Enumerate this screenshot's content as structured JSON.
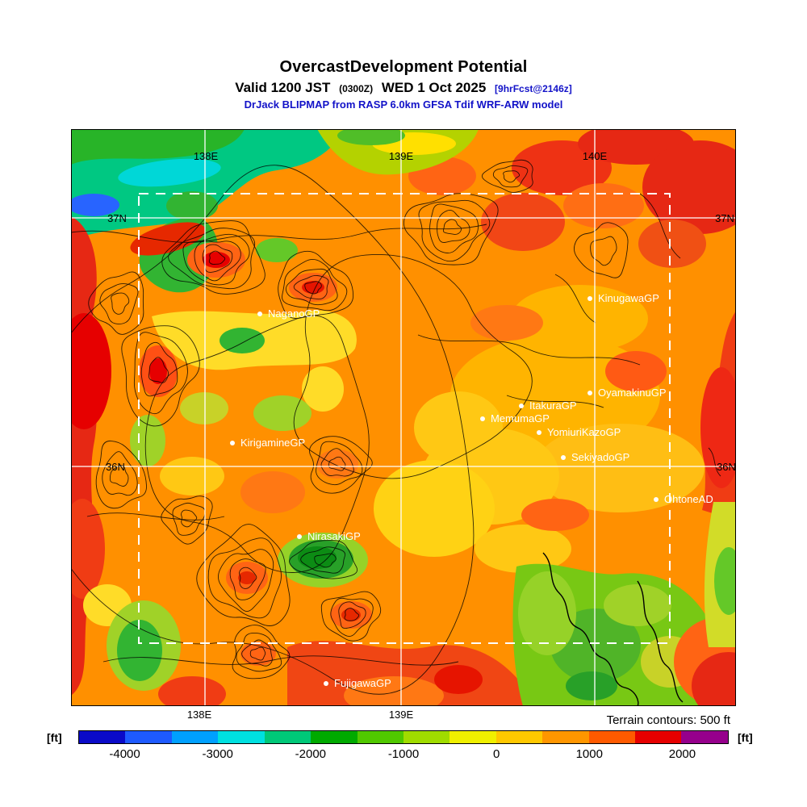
{
  "title": {
    "line1": "OvercastDevelopment Potential",
    "valid_prefix": "Valid 1200 JST",
    "valid_zulu": "(0300Z)",
    "valid_date": "WED 1 Oct 2025",
    "forecast_tag": "[9hrFcst@2146z]",
    "model_line": "DrJack BLIPMAP from RASP 6.0km GFSA Tdif WRF-ARW model"
  },
  "map": {
    "grid_labels": {
      "top": [
        "138E",
        "139E",
        "140E"
      ],
      "bottom": [
        "138E",
        "139E"
      ],
      "left": [
        "37N",
        "36N"
      ],
      "right": [
        "37N",
        "36N"
      ]
    },
    "stations": [
      {
        "label": "NaganoGP"
      },
      {
        "label": "KinugawaGP"
      },
      {
        "label": "OyamakinuGP"
      },
      {
        "label": "ItakuraGP"
      },
      {
        "label": "MemumaGP"
      },
      {
        "label": "YomiuriKazoGP"
      },
      {
        "label": "SekiyadoGP"
      },
      {
        "label": "OhtoneAD"
      },
      {
        "label": "KirigamineGP"
      },
      {
        "label": "NirasakiGP"
      },
      {
        "label": "FujigawaGP"
      }
    ]
  },
  "footer": {
    "terrain_note": "Terrain contours: 500 ft",
    "unit_left": "[ft]",
    "unit_right": "[ft]"
  },
  "colorbar": {
    "ticks": [
      "-4000",
      "-3000",
      "-2000",
      "-1000",
      "0",
      "1000",
      "2000"
    ],
    "segments": [
      "#0a0ac8",
      "#1e5aff",
      "#00a0ff",
      "#00e0e0",
      "#00c878",
      "#00aa00",
      "#50c800",
      "#a0dc00",
      "#f0f000",
      "#ffc800",
      "#ff9600",
      "#ff5a00",
      "#e60000",
      "#96008c"
    ]
  }
}
